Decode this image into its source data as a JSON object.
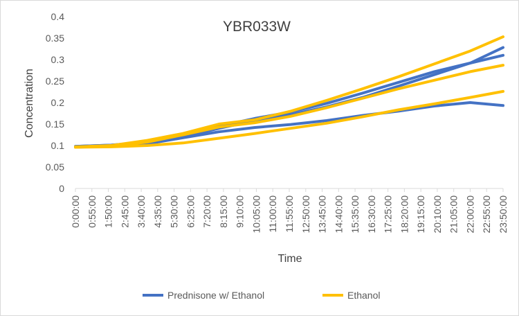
{
  "chart_data": {
    "type": "line",
    "title": "YBR033W",
    "xlabel": "Time",
    "ylabel": "Concentration",
    "ylim": [
      0,
      0.4
    ],
    "yticks": [
      "0",
      "0.05",
      "0.1",
      "0.15",
      "0.2",
      "0.25",
      "0.3",
      "0.35",
      "0.4"
    ],
    "grid": false,
    "legend_position": "bottom",
    "x_tick_labels": [
      "0:00:00",
      "0:55:00",
      "1:50:00",
      "2:45:00",
      "3:40:00",
      "4:35:00",
      "5:30:00",
      "6:25:00",
      "7:20:00",
      "8:15:00",
      "9:10:00",
      "10:05:00",
      "11:00:00",
      "11:55:00",
      "12:50:00",
      "13:45:00",
      "14:40:00",
      "15:35:00",
      "16:30:00",
      "17:25:00",
      "18:20:00",
      "19:15:00",
      "20:10:00",
      "21:05:00",
      "22:00:00",
      "22:55:00",
      "23:50:00"
    ],
    "x": [
      "0:00:00",
      "2:00:00",
      "4:00:00",
      "6:00:00",
      "8:00:00",
      "10:00:00",
      "12:00:00",
      "14:00:00",
      "16:00:00",
      "18:00:00",
      "20:00:00",
      "22:00:00",
      "23:50:00"
    ],
    "series": [
      {
        "legend": "Prednisone w/ Ethanol",
        "color": "#4472C4",
        "values": [
          0.098,
          0.101,
          0.108,
          0.125,
          0.145,
          0.163,
          0.178,
          0.198,
          0.222,
          0.247,
          0.272,
          0.292,
          0.31
        ]
      },
      {
        "legend": "Prednisone w/ Ethanol",
        "color": "#4472C4",
        "values": [
          0.098,
          0.101,
          0.106,
          0.12,
          0.14,
          0.158,
          0.172,
          0.19,
          0.212,
          0.238,
          0.265,
          0.292,
          0.328
        ]
      },
      {
        "legend": "Prednisone w/ Ethanol",
        "color": "#4472C4",
        "values": [
          0.097,
          0.1,
          0.104,
          0.118,
          0.132,
          0.142,
          0.149,
          0.158,
          0.17,
          0.18,
          0.192,
          0.2,
          0.193
        ]
      },
      {
        "legend": "Ethanol",
        "color": "#FFC000",
        "values": [
          0.097,
          0.1,
          0.112,
          0.128,
          0.15,
          0.16,
          0.18,
          0.205,
          0.232,
          0.26,
          0.29,
          0.32,
          0.353
        ]
      },
      {
        "legend": "Ethanol",
        "color": "#FFC000",
        "values": [
          0.096,
          0.099,
          0.108,
          0.125,
          0.143,
          0.153,
          0.168,
          0.188,
          0.21,
          0.232,
          0.252,
          0.272,
          0.287
        ]
      },
      {
        "legend": "Ethanol",
        "color": "#FFC000",
        "values": [
          0.096,
          0.097,
          0.1,
          0.106,
          0.117,
          0.128,
          0.14,
          0.152,
          0.167,
          0.183,
          0.197,
          0.212,
          0.226
        ]
      }
    ],
    "legend": [
      {
        "label": "Prednisone w/ Ethanol",
        "color": "#4472C4"
      },
      {
        "label": "Ethanol",
        "color": "#FFC000"
      }
    ],
    "colors": {
      "axis": "#d9d9d9",
      "text": "#595959",
      "border": "#d9d9d9"
    }
  }
}
